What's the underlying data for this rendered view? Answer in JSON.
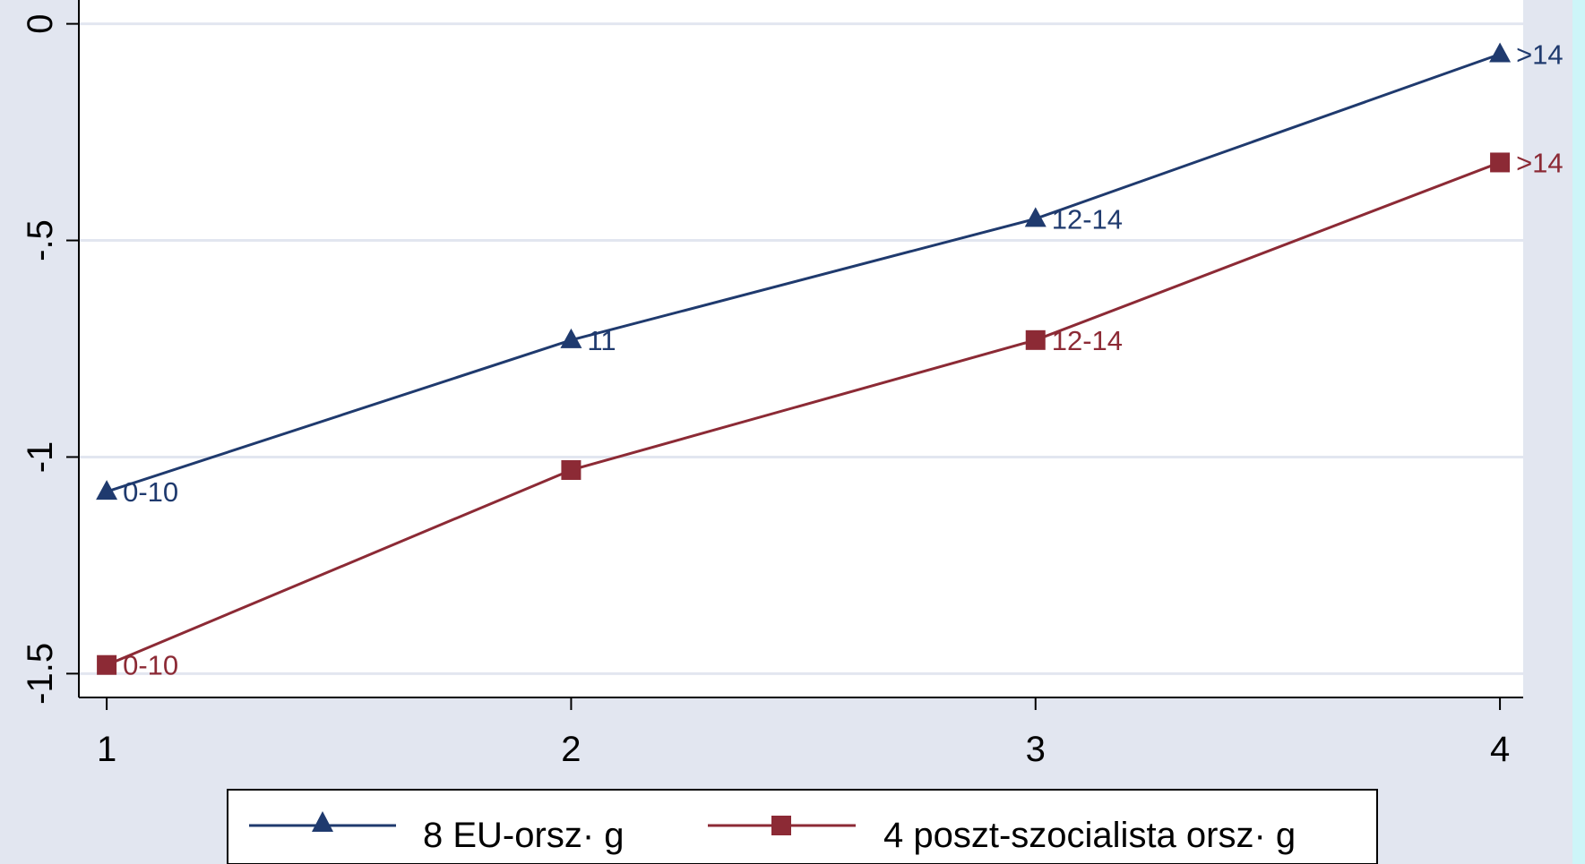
{
  "chart_data": {
    "type": "line",
    "title": "",
    "xlabel": "",
    "ylabel": "",
    "x": [
      1,
      2,
      3,
      4
    ],
    "x_ticks": [
      "1",
      "2",
      "3",
      "4"
    ],
    "y_ticks": [
      {
        "value": 0,
        "label": "0"
      },
      {
        "value": -0.5,
        "label": "-.5"
      },
      {
        "value": -1,
        "label": "-1"
      },
      {
        "value": -1.5,
        "label": "-1.5"
      }
    ],
    "xlim": [
      0.94,
      4.05
    ],
    "ylim": [
      -1.555,
      0.055
    ],
    "grid": true,
    "legend_position": "bottom",
    "series": [
      {
        "name": "8 EU-orsz· g",
        "color": "#1f3a6e",
        "marker": "triangle",
        "values": [
          -1.08,
          -0.73,
          -0.45,
          -0.07
        ],
        "point_labels": [
          "0-10",
          "11",
          "12-14",
          ">14"
        ]
      },
      {
        "name": "4 poszt-szocialista orsz· g",
        "color": "#8c2a35",
        "marker": "square",
        "values": [
          -1.48,
          -1.03,
          -0.73,
          -0.32
        ],
        "point_labels": [
          "0-10",
          "",
          "12-14",
          ">14"
        ]
      }
    ]
  }
}
